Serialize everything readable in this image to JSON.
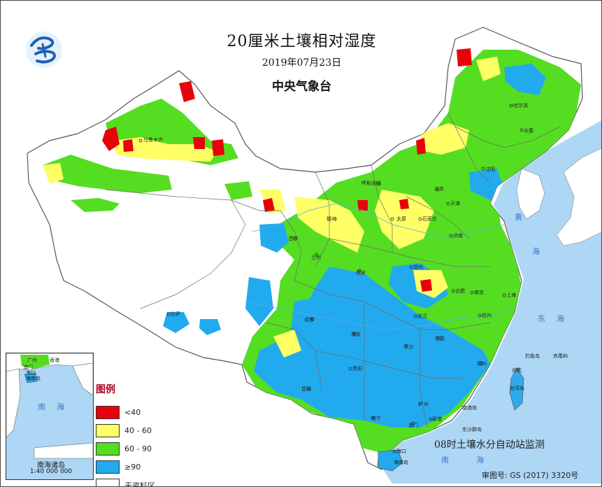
{
  "title": "20厘米土壤相对湿度",
  "date": "2019年07月23日",
  "issuer": "中央气象台",
  "legend": {
    "title": "图例",
    "items": [
      {
        "label": "<40",
        "color": "#e8000b"
      },
      {
        "label": "40 - 60",
        "color": "#ffff66"
      },
      {
        "label": "60 - 90",
        "color": "#55dd22"
      },
      {
        "label": "≥90",
        "color": "#22aaee"
      },
      {
        "label": "无资料区",
        "color": "#ffffff"
      }
    ]
  },
  "footnote": "08时土壤水分自动站监测",
  "approval_number": "审图号: GS (2017) 3320号",
  "inset": {
    "name": "南海诸岛",
    "scale": "1:40 000 000"
  },
  "cities": [
    "乌鲁木齐",
    "哈尔滨",
    "长春",
    "沈阳",
    "呼和浩特",
    "北京",
    "天津",
    "银川",
    "太原",
    "石家庄",
    "济南",
    "西宁",
    "兰州",
    "郑州",
    "西安",
    "合肥",
    "南京",
    "上海",
    "拉萨",
    "成都",
    "武汉",
    "杭州",
    "重庆",
    "南昌",
    "长沙",
    "福州",
    "贵阳",
    "台北",
    "昆明",
    "广州",
    "南宁",
    "香港",
    "澳门",
    "海口",
    "台湾岛",
    "东沙群岛",
    "南澳岛",
    "海南岛",
    "钓鱼岛",
    "赤尾屿"
  ],
  "inset_cities": [
    "广州",
    "香港",
    "澳门",
    "海口",
    "海南岛"
  ],
  "seas": [
    "黄",
    "海",
    "东",
    "海",
    "南",
    "海"
  ],
  "inset_seas": [
    "南",
    "海"
  ],
  "colors": {
    "ocean": "#aed6f5",
    "land_no_data": "#ffffff",
    "border": "#6b6b6b"
  }
}
